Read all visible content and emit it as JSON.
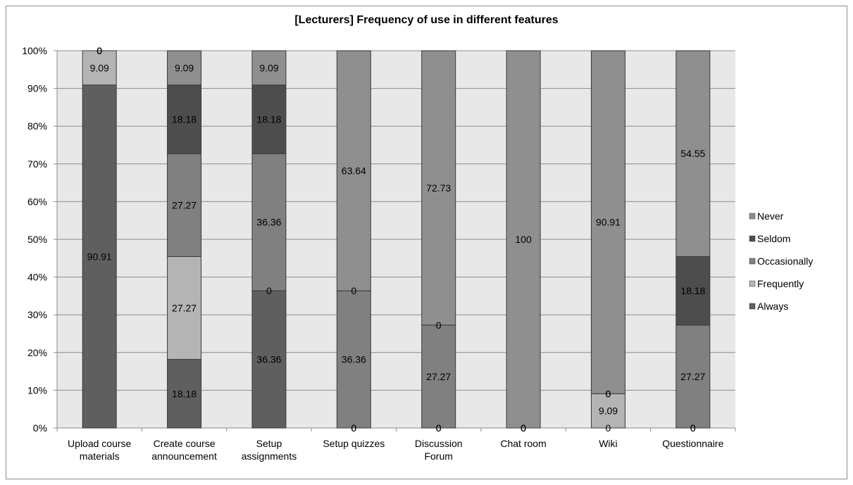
{
  "chart_data": {
    "type": "bar",
    "stacked": "percent",
    "title": "[Lecturers] Frequency of use in different features",
    "xlabel": "",
    "ylabel": "",
    "ylim": [
      0,
      100
    ],
    "y_ticks": [
      "0%",
      "10%",
      "20%",
      "30%",
      "40%",
      "50%",
      "60%",
      "70%",
      "80%",
      "90%",
      "100%"
    ],
    "categories": [
      [
        "Upload course",
        "materials"
      ],
      [
        "Create course",
        "announcement"
      ],
      [
        "Setup",
        "assignments"
      ],
      [
        "Setup quizzes"
      ],
      [
        "Discussion",
        "Forum"
      ],
      [
        "Chat room"
      ],
      [
        "Wiki"
      ],
      [
        "Questionnaire"
      ]
    ],
    "series": [
      {
        "name": "Always",
        "color": "#5f5f5f",
        "values": [
          90.91,
          18.18,
          36.36,
          0,
          0,
          0,
          0,
          0
        ]
      },
      {
        "name": "Frequently",
        "color": "#b4b4b4",
        "values": [
          9.09,
          27.27,
          0,
          0,
          0,
          0,
          9.09,
          0
        ]
      },
      {
        "name": "Occasionally",
        "color": "#808080",
        "values": [
          0,
          27.27,
          36.36,
          36.36,
          27.27,
          0,
          0,
          27.27
        ]
      },
      {
        "name": "Seldom",
        "color": "#4d4d4d",
        "values": [
          0,
          18.18,
          18.18,
          0,
          0,
          0,
          0,
          18.18
        ]
      },
      {
        "name": "Never",
        "color": "#8f8f8f",
        "values": [
          0,
          9.09,
          9.09,
          63.64,
          72.73,
          100,
          90.91,
          54.55
        ]
      }
    ],
    "legend_position": "right",
    "grid": true,
    "plot_background": "#e8e8e8",
    "gridline_color": "#8c8c8c"
  }
}
